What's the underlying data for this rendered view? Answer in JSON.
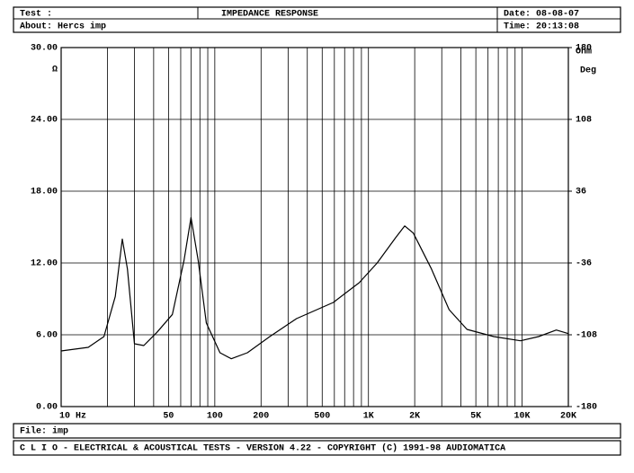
{
  "header": {
    "test_label": "Test :",
    "title": "IMPEDANCE RESPONSE",
    "date": "Date: 08-08-07",
    "about": "About:   Hercs imp",
    "time": "Time: 20:13:08"
  },
  "chart_data": {
    "type": "line",
    "log_x": true,
    "grid": true,
    "ylabel": "Ω",
    "ylabel_right": "Ohm",
    "y2label": "Deg",
    "xlim": [
      10,
      20000
    ],
    "ylim": [
      0,
      30
    ],
    "y2lim": [
      -180,
      180
    ],
    "xticks": [
      {
        "value": 10,
        "label": "10  Hz"
      },
      50,
      100,
      200,
      500,
      {
        "value": 1000,
        "label": "1K"
      },
      {
        "value": 2000,
        "label": "2K"
      },
      {
        "value": 5000,
        "label": "5K"
      },
      {
        "value": 10000,
        "label": "10K"
      },
      {
        "value": 20000,
        "label": "20K"
      }
    ],
    "x_minor_ticks": [
      20,
      30,
      40,
      60,
      70,
      80,
      90,
      300,
      400,
      600,
      700,
      800,
      900,
      3000,
      4000,
      6000,
      7000,
      8000,
      9000
    ],
    "yticks": [
      {
        "value": 0,
        "label": "0.00"
      },
      {
        "value": 6,
        "label": "6.00"
      },
      {
        "value": 12,
        "label": "12.00"
      },
      {
        "value": 18,
        "label": "18.00"
      },
      {
        "value": 24,
        "label": "24.00"
      },
      {
        "value": 30,
        "label": "30.00"
      }
    ],
    "y2ticks": [
      -180,
      -108,
      -36,
      36,
      108,
      180
    ],
    "series": [
      {
        "name": "Impedance",
        "color": "#000000",
        "x": [
          10,
          15,
          19,
          22.5,
          25,
          27,
          30,
          34.5,
          42,
          53,
          63,
          70,
          78,
          88,
          108,
          128,
          163,
          228,
          340,
          590,
          870,
          1140,
          1500,
          1720,
          1960,
          2570,
          3350,
          4380,
          6540,
          9770,
          12800,
          16700,
          20000
        ],
        "values": [
          4.65,
          4.95,
          5.85,
          9.2,
          14.0,
          11.5,
          5.25,
          5.1,
          6.2,
          7.7,
          12.2,
          15.8,
          12.2,
          7.0,
          4.5,
          4.0,
          4.5,
          5.85,
          7.35,
          8.7,
          10.35,
          12.0,
          14.1,
          15.1,
          14.5,
          11.5,
          8.1,
          6.45,
          5.85,
          5.5,
          5.85,
          6.4,
          6.1
        ]
      }
    ]
  },
  "footer": {
    "file": "File:  imp",
    "banner": "C L I O  -  ELECTRICAL & ACOUSTICAL TESTS  -  VERSION 4.22  -  COPYRIGHT (C) 1991-98 AUDIOMATICA"
  }
}
